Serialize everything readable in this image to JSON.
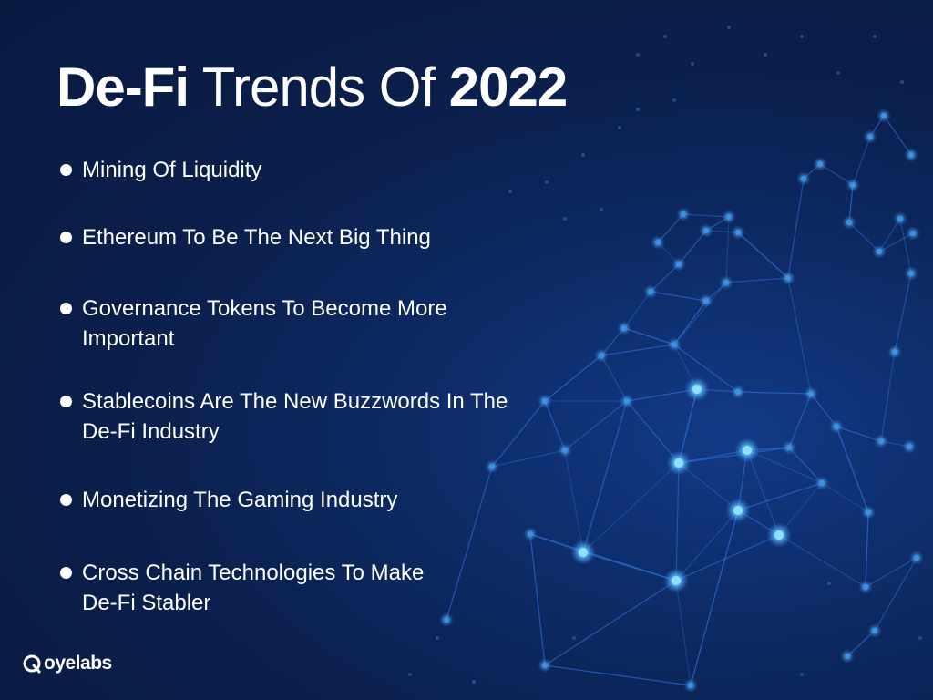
{
  "slide": {
    "title": {
      "part1": "De-Fi",
      "part2": " Trends Of ",
      "part3": "2022"
    },
    "bullets": [
      {
        "line1": "Mining Of Liquidity",
        "line2": ""
      },
      {
        "line1": "Ethereum To Be The Next Big Thing",
        "line2": ""
      },
      {
        "line1": "Governance Tokens To Become More",
        "line2": "Important"
      },
      {
        "line1": "Stablecoins Are The New Buzzwords In The",
        "line2": "De-Fi Industry"
      },
      {
        "line1": "Monetizing The Gaming Industry",
        "line2": ""
      },
      {
        "line1": "Cross Chain Technologies To Make",
        "line2": "De-Fi Stabler"
      }
    ],
    "logo": {
      "text": "oyelabs",
      "icon": "oyelabs-logo-icon"
    },
    "colors": {
      "background": "#0a1d44",
      "network_node": "#5cc8ff",
      "network_line": "#2f6fd6",
      "text": "#ffffff"
    }
  }
}
